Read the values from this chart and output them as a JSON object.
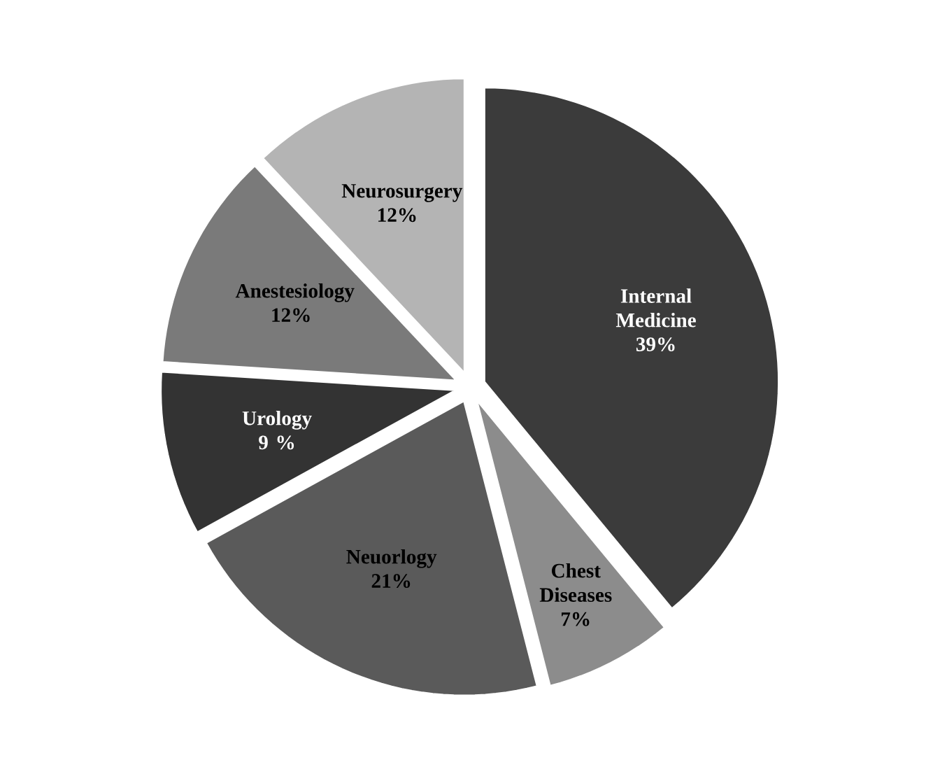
{
  "chart_data": {
    "type": "pie",
    "categories": [
      "Internal Medicine",
      "Chest Diseases",
      "Neuorlogy",
      "Urology",
      "Anestesiology",
      "Neurosurgery"
    ],
    "values": [
      39,
      7,
      21,
      9,
      12,
      12
    ],
    "value_labels": [
      "39%",
      "7%",
      "21%",
      "9 %",
      "12%",
      "12%"
    ],
    "colors": [
      "#3b3b3b",
      "#8c8c8c",
      "#5a5a5a",
      "#333333",
      "#7a7a7a",
      "#b4b4b4"
    ]
  }
}
